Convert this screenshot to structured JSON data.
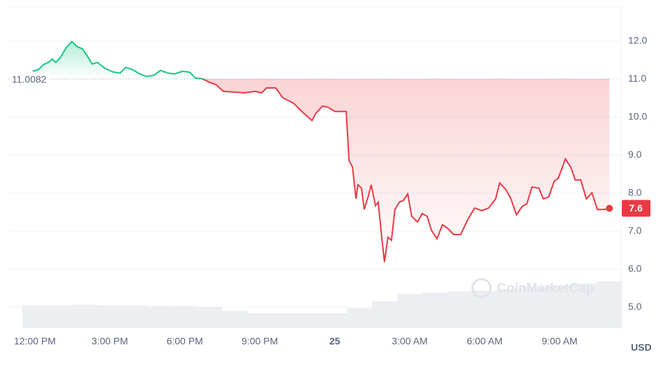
{
  "chart_data": {
    "type": "line",
    "x": [
      -0.08,
      0.14,
      0.34,
      0.56,
      0.7,
      0.84,
      1.03,
      1.26,
      1.48,
      1.68,
      1.9,
      2.09,
      2.29,
      2.51,
      2.79,
      3.13,
      3.41,
      3.63,
      3.91,
      4.19,
      4.47,
      4.75,
      5.03,
      5.31,
      5.59,
      5.92,
      6.2,
      6.42,
      6.7,
      6.98,
      7.26,
      7.54,
      7.96,
      8.38,
      8.8,
      9.08,
      9.27,
      9.64,
      9.92,
      10.34,
      10.75,
      11.09,
      11.23,
      11.51,
      11.73,
      12.01,
      12.29,
      12.46,
      12.57,
      12.71,
      12.85,
      12.93,
      13.07,
      13.18,
      13.35,
      13.46,
      13.63,
      13.74,
      13.85,
      13.99,
      14.13,
      14.27,
      14.41,
      14.58,
      14.75,
      14.92,
      15.08,
      15.31,
      15.5,
      15.7,
      15.87,
      16.09,
      16.31,
      16.54,
      16.76,
      17.04,
      17.32,
      17.6,
      17.88,
      18.16,
      18.44,
      18.6,
      18.85,
      19.05,
      19.27,
      19.5,
      19.69,
      19.89,
      20.17,
      20.34,
      20.56,
      20.78,
      20.95,
      21.23,
      21.45,
      21.62,
      21.84,
      22.07,
      22.29,
      22.51,
      22.77,
      22.99
    ],
    "series": [
      {
        "values": [
          11.21,
          11.25,
          11.38,
          11.45,
          11.53,
          11.44,
          11.58,
          11.84,
          11.99,
          11.86,
          11.8,
          11.62,
          11.4,
          11.44,
          11.29,
          11.19,
          11.16,
          11.31,
          11.25,
          11.14,
          11.07,
          11.1,
          11.23,
          11.16,
          11.14,
          11.21,
          11.18,
          11.03,
          11.01,
          10.92,
          10.85,
          10.68,
          10.66,
          10.64,
          10.68,
          10.64,
          10.77,
          10.77,
          10.51,
          10.37,
          10.11,
          9.91,
          10.09,
          10.29,
          10.26,
          10.15,
          10.15,
          10.15,
          8.86,
          8.68,
          7.85,
          8.22,
          8.13,
          7.57,
          7.94,
          8.22,
          7.67,
          7.76,
          7.02,
          6.19,
          6.84,
          6.76,
          7.57,
          7.76,
          7.81,
          7.98,
          7.39,
          7.24,
          7.46,
          7.39,
          7.02,
          6.8,
          7.17,
          7.06,
          6.91,
          6.91,
          7.3,
          7.61,
          7.54,
          7.61,
          7.85,
          8.27,
          8.09,
          7.85,
          7.43,
          7.65,
          7.72,
          8.16,
          8.13,
          7.85,
          7.9,
          8.31,
          8.4,
          8.9,
          8.68,
          8.35,
          8.35,
          7.85,
          8.01,
          7.57,
          7.57,
          7.6
        ]
      }
    ],
    "up_color": "#16c784",
    "down_color": "#ea3943",
    "baseline": 11.0082,
    "current_price": 7.6,
    "unit": "USD",
    "watermark": "CoinMarketCap",
    "volume": {
      "x": [
        0,
        1,
        2,
        3,
        4,
        5,
        6,
        7,
        8,
        9,
        10,
        11,
        12,
        13,
        14,
        15,
        16,
        17,
        18,
        19,
        20,
        21,
        22,
        23
      ],
      "values": [
        32,
        32,
        33,
        32,
        32,
        31,
        31,
        30,
        24,
        21,
        21,
        21,
        21,
        28,
        38,
        48,
        50,
        52,
        53,
        55,
        58,
        60,
        63,
        66
      ]
    },
    "xlim": [
      -1.06,
      23.46
    ],
    "ylim": [
      4.45,
      12.9
    ],
    "xticks": [
      {
        "value": 0,
        "label": "12:00 PM"
      },
      {
        "value": 3,
        "label": "3:00 PM"
      },
      {
        "value": 6,
        "label": "6:00 PM"
      },
      {
        "value": 9,
        "label": "9:00 PM"
      },
      {
        "value": 12,
        "label": "25"
      },
      {
        "value": 15,
        "label": "3:00 AM"
      },
      {
        "value": 18,
        "label": "6:00 AM"
      },
      {
        "value": 21,
        "label": "9:00 AM"
      }
    ],
    "yticks": [
      {
        "value": 5,
        "label": "5.0"
      },
      {
        "value": 6,
        "label": "6.0"
      },
      {
        "value": 7,
        "label": "7.0"
      },
      {
        "value": 8,
        "label": "8.0"
      },
      {
        "value": 9,
        "label": "9.0"
      },
      {
        "value": 10,
        "label": "10.0"
      },
      {
        "value": 11,
        "label": "11.0"
      },
      {
        "value": 12,
        "label": "12.0"
      }
    ],
    "grid": true
  }
}
